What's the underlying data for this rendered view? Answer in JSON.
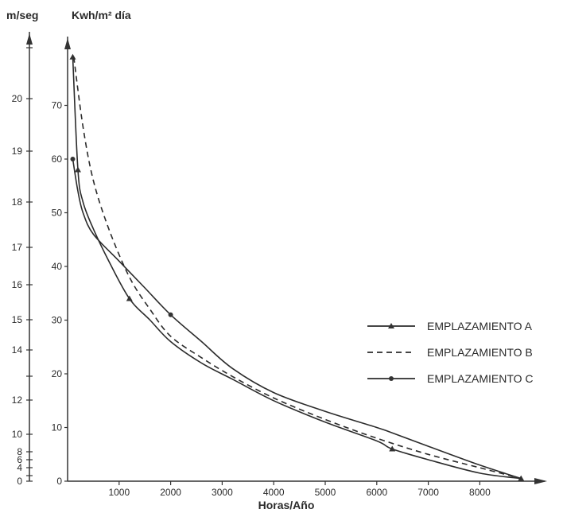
{
  "chart_data": {
    "type": "line",
    "xlabel": "Horas/Año",
    "ylabel_left": "m/seg",
    "ylabel_right": "Kwh/m² día",
    "x_ticks": [
      1000,
      2000,
      3000,
      4000,
      5000,
      6000,
      7000,
      8000
    ],
    "x_tick_labels": [
      "1000",
      "2000",
      "3000",
      "4000",
      "5000",
      "6000",
      "7000",
      "8000"
    ],
    "y_ticks": [
      0,
      10,
      20,
      30,
      40,
      50,
      60,
      70
    ],
    "y_tick_labels": [
      "0",
      "10",
      "20",
      "30",
      "40",
      "50",
      "60",
      "70"
    ],
    "speed_ticks": [
      0,
      2,
      4,
      6,
      8,
      10,
      12,
      13,
      14,
      15,
      16,
      17,
      18,
      19,
      20,
      21
    ],
    "speed_tick_labels": [
      "0",
      "",
      "4",
      "6",
      "8",
      "10",
      "12",
      "",
      "14",
      "15",
      "16",
      "17",
      "18",
      "19",
      "20",
      ""
    ],
    "xlim": [
      -100,
      9200
    ],
    "ylim": [
      0,
      80
    ],
    "grid": false,
    "legend_position": "right",
    "series": [
      {
        "name": "EMPLAZAMIENTO A",
        "style": "solid",
        "marker": "triangle",
        "x": [
          100,
          200,
          300,
          500,
          800,
          1200,
          1600,
          2000,
          2600,
          3200,
          4000,
          5000,
          6000,
          6300,
          7000,
          8000,
          8800
        ],
        "y": [
          79,
          58,
          52,
          47,
          41,
          34,
          30,
          26,
          22,
          19,
          15,
          11,
          7.5,
          6,
          4,
          1.5,
          0.5
        ],
        "marker_indices": [
          0,
          1,
          5,
          13,
          16
        ]
      },
      {
        "name": "EMPLAZAMIENTO B",
        "style": "dashed",
        "marker": "none",
        "x": [
          120,
          300,
          500,
          800,
          1200,
          1600,
          2000,
          2600,
          3200,
          4000,
          5000,
          6000,
          7000,
          8000,
          8800
        ],
        "y": [
          79,
          66,
          56,
          47,
          38,
          32,
          27,
          23,
          19.5,
          15.5,
          11.5,
          8,
          5,
          2.5,
          0.5
        ],
        "marker_indices": []
      },
      {
        "name": "EMPLAZAMIENTO C",
        "style": "solid",
        "marker": "circle",
        "x": [
          100,
          200,
          300,
          500,
          1000,
          1500,
          2000,
          2600,
          3200,
          4000,
          5000,
          6000,
          6300,
          7000,
          8000,
          8800
        ],
        "y": [
          60,
          54,
          50,
          46,
          41,
          36,
          31,
          26,
          21,
          16.5,
          13,
          10,
          9,
          6.5,
          3,
          0.5
        ],
        "marker_indices": [
          0,
          6
        ]
      }
    ]
  }
}
